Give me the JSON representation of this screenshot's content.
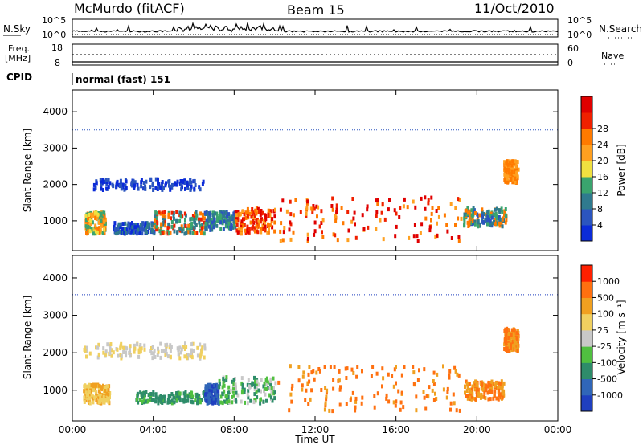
{
  "header": {
    "station": "McMurdo (fitACF)",
    "beam": "Beam 15",
    "date": "11/Oct/2010"
  },
  "strips": {
    "nsky_label": "N.Sky",
    "nsearch_label": "N.Search",
    "nsky_ticks_left": [
      "10^5",
      "10^0"
    ],
    "nsky_ticks_right": [
      "10^5",
      "10^0"
    ],
    "freq_label_1": "Freq.",
    "freq_label_2": "[MHz]",
    "freq_ticks": [
      "18",
      "8"
    ],
    "nave_label": "Nave",
    "nave_ticks": [
      "60",
      "0"
    ],
    "cpid_label": "CPID",
    "cpid_value": "normal (fast) 151"
  },
  "chart_data": [
    {
      "type": "heatmap",
      "name": "power",
      "ylabel": "Slant Range [km]",
      "yticks": [
        "1000",
        "2000",
        "3000",
        "4000"
      ],
      "ylim": [
        180,
        4600
      ],
      "xlim_hours": [
        0,
        24
      ],
      "colorbar": {
        "label": "Power [dB]",
        "ticks": [
          "4",
          "8",
          "12",
          "16",
          "20",
          "24",
          "28"
        ],
        "colors": [
          "#0b2bd8",
          "#2b55bf",
          "#2f7a8e",
          "#3aa46e",
          "#f0e040",
          "#ffa020",
          "#ff7a00",
          "#f02000",
          "#e00000"
        ],
        "range": [
          0,
          30
        ]
      }
    },
    {
      "type": "heatmap",
      "name": "velocity",
      "ylabel": "Slant Range [km]",
      "yticks": [
        "1000",
        "2000",
        "3000",
        "4000"
      ],
      "ylim": [
        180,
        4600
      ],
      "xlim_hours": [
        0,
        24
      ],
      "colorbar": {
        "label": "Velocity [m s⁻¹]",
        "ticks": [
          "1000",
          "500",
          "100",
          "25",
          "-25",
          "-100",
          "-500",
          "-1000"
        ],
        "colors": [
          "#1f3fbf",
          "#3066b8",
          "#2e8c6a",
          "#50c040",
          "#c8c8c8",
          "#f0d060",
          "#f0a020",
          "#ff7010",
          "#ff2000"
        ]
      }
    }
  ],
  "xaxis": {
    "ticks": [
      "00:00",
      "04:00",
      "08:00",
      "12:00",
      "16:00",
      "20:00",
      "00:00"
    ],
    "label": "Time UT"
  }
}
